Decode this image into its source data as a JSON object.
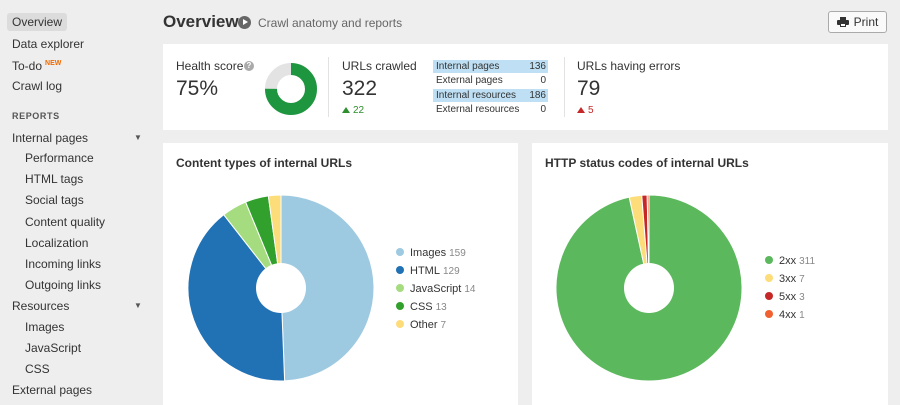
{
  "sidebar": {
    "overview": "Overview",
    "data_explorer": "Data explorer",
    "todo": "To-do",
    "todo_badge": "NEW",
    "crawl_log": "Crawl log",
    "reports_heading": "REPORTS",
    "internal_pages": "Internal pages",
    "performance": "Performance",
    "html_tags": "HTML tags",
    "social_tags": "Social tags",
    "content_quality": "Content quality",
    "localization": "Localization",
    "incoming_links": "Incoming links",
    "outgoing_links": "Outgoing links",
    "resources": "Resources",
    "images": "Images",
    "javascript": "JavaScript",
    "css": "CSS",
    "external_pages": "External pages",
    "caret_icon": "caret-down-icon"
  },
  "header": {
    "title": "Overview",
    "subtitle": "Crawl anatomy and reports",
    "print_label": "Print",
    "print_icon": "printer-icon",
    "subtitle_icon": "play-circle-icon"
  },
  "stats": {
    "health_label": "Health score",
    "health_value": "75%",
    "health_fraction": 0.75,
    "urls_crawled_label": "URLs crawled",
    "urls_crawled_value": "322",
    "urls_crawled_delta": "22",
    "breakdown": [
      {
        "label": "Internal pages",
        "value": "136",
        "highlight": true
      },
      {
        "label": "External pages",
        "value": "0",
        "highlight": false
      },
      {
        "label": "Internal resources",
        "value": "186",
        "highlight": true
      },
      {
        "label": "External resources",
        "value": "0",
        "highlight": false
      }
    ],
    "errors_label": "URLs having errors",
    "errors_value": "79",
    "errors_delta": "5",
    "colors": {
      "good": "#1e9640",
      "track": "#e3e3e3",
      "up": "#2d8f2d",
      "down": "#c62828",
      "highlight": "#bfe0f4"
    }
  },
  "content_types": {
    "title": "Content types of internal URLs",
    "chart_data": {
      "type": "pie",
      "categories": [
        "Images",
        "HTML",
        "JavaScript",
        "CSS",
        "Other"
      ],
      "values": [
        159,
        129,
        14,
        13,
        7
      ],
      "colors": [
        "#9ecae1",
        "#2171b5",
        "#a6dc80",
        "#31a02c",
        "#fddc7a"
      ]
    }
  },
  "http_status": {
    "title": "HTTP status codes of internal URLs",
    "chart_data": {
      "type": "pie",
      "categories": [
        "2xx",
        "3xx",
        "5xx",
        "4xx"
      ],
      "values": [
        311,
        7,
        3,
        1
      ],
      "colors": [
        "#5cb85c",
        "#fddc7a",
        "#c62828",
        "#f06030"
      ]
    }
  }
}
